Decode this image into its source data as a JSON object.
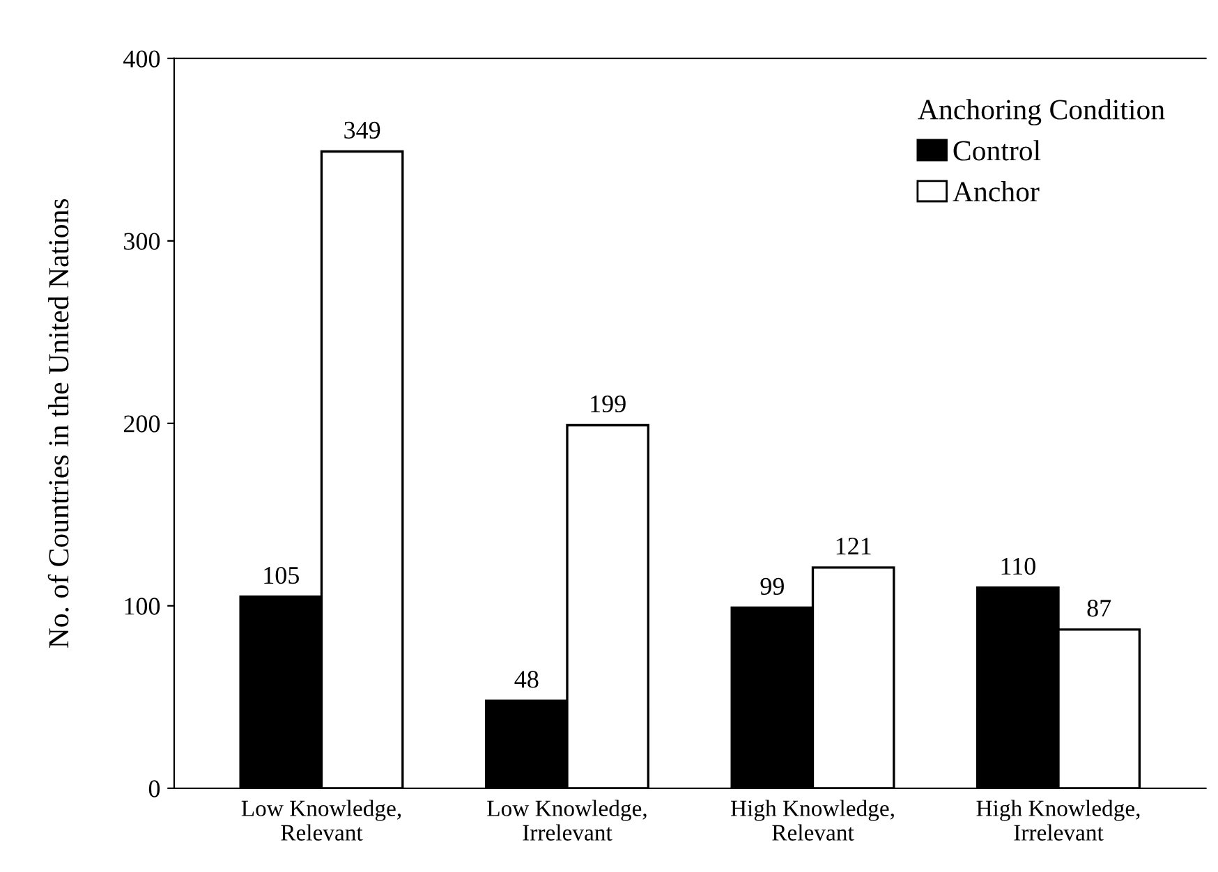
{
  "chart_data": {
    "type": "bar",
    "ylabel": "No. of Countries in the United Nations",
    "legend_title": "Anchoring Condition",
    "categories": [
      "Low Knowledge,\nRelevant",
      "Low Knowledge,\nIrrelevant",
      "High Knowledge,\nRelevant",
      "High Knowledge,\nIrrelevant"
    ],
    "series": [
      {
        "name": "Control",
        "color": "#000000",
        "values": [
          105,
          48,
          99,
          110
        ]
      },
      {
        "name": "Anchor",
        "color": "#ffffff",
        "values": [
          349,
          199,
          121,
          87
        ]
      }
    ],
    "ylim": [
      0,
      400
    ],
    "yticks": [
      0,
      100,
      200,
      300,
      400
    ],
    "data_labels": true,
    "legend": "top right",
    "grid": false
  }
}
